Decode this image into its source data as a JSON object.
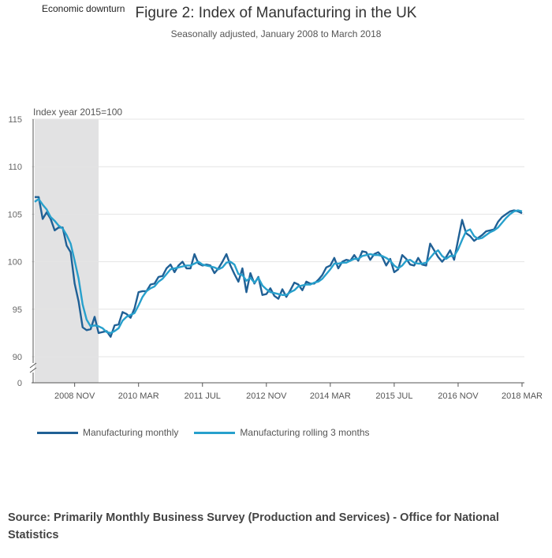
{
  "chart_data": {
    "type": "line",
    "title": "Figure 2: Index of Manufacturing in the UK",
    "subtitle": "Seasonally adjusted, January 2008 to March 2018",
    "ylabel": "Index year 2015=100",
    "ylim": [
      90,
      115
    ],
    "yticks": [
      115,
      110,
      105,
      100,
      95,
      90
    ],
    "ybreak_label": "0",
    "x_start": "2008 JAN",
    "x_end": "2018 MAR",
    "xtick_labels": [
      "2008 NOV",
      "2010 MAR",
      "2011 JUL",
      "2012 NOV",
      "2014 MAR",
      "2015 JUL",
      "2016 NOV",
      "2018 MAR"
    ],
    "xtick_index": [
      10,
      26,
      42,
      58,
      74,
      90,
      106,
      122
    ],
    "shaded_region": {
      "label": "Economic downturn",
      "start_index": 0,
      "end_index": 16
    },
    "series": [
      {
        "name": "Manufacturing monthly",
        "color": "#206095",
        "values": [
          106.8,
          106.8,
          104.5,
          105.2,
          104.5,
          103.3,
          103.6,
          103.6,
          101.7,
          101.0,
          97.7,
          95.8,
          93.1,
          92.8,
          92.9,
          94.2,
          92.5,
          92.6,
          92.7,
          92.1,
          93.3,
          93.4,
          94.7,
          94.5,
          94.1,
          95.1,
          96.8,
          96.9,
          96.9,
          97.6,
          97.7,
          98.4,
          98.5,
          99.3,
          99.7,
          98.9,
          99.6,
          100.0,
          99.3,
          99.3,
          100.8,
          99.8,
          99.6,
          99.7,
          99.6,
          98.8,
          99.3,
          100.0,
          100.8,
          99.6,
          98.7,
          97.9,
          99.3,
          96.8,
          98.8,
          97.7,
          98.4,
          96.5,
          96.6,
          97.2,
          96.4,
          96.1,
          97.1,
          96.3,
          97.0,
          97.8,
          97.6,
          97.0,
          97.9,
          97.7,
          97.7,
          98.1,
          98.6,
          99.4,
          99.6,
          100.4,
          99.3,
          100.0,
          100.2,
          100.1,
          100.7,
          100.1,
          101.1,
          101.0,
          100.2,
          100.8,
          101.0,
          100.5,
          99.6,
          100.3,
          98.9,
          99.2,
          100.7,
          100.3,
          99.7,
          99.6,
          100.4,
          99.7,
          99.6,
          101.9,
          101.2,
          100.5,
          100.0,
          100.5,
          101.2,
          100.2,
          102.3,
          104.4,
          103.0,
          102.7,
          102.2,
          102.5,
          102.8,
          103.2,
          103.3,
          103.4,
          104.2,
          104.7,
          105.0,
          105.3,
          105.4,
          105.3,
          105.1
        ]
      },
      {
        "name": "Manufacturing rolling 3 months",
        "color": "#27a0cc",
        "values": [
          106.3,
          106.6,
          106.0,
          105.5,
          104.7,
          104.3,
          103.8,
          103.5,
          102.8,
          101.9,
          100.1,
          98.2,
          95.5,
          93.9,
          93.2,
          93.3,
          93.2,
          93.0,
          92.6,
          92.5,
          92.7,
          93.0,
          93.8,
          94.2,
          94.4,
          94.6,
          95.4,
          96.3,
          96.9,
          97.2,
          97.4,
          97.9,
          98.2,
          98.7,
          99.2,
          99.3,
          99.4,
          99.5,
          99.6,
          99.6,
          99.8,
          100.0,
          99.7,
          99.6,
          99.5,
          99.4,
          99.2,
          99.4,
          99.9,
          100.0,
          99.7,
          98.7,
          98.6,
          98.0,
          98.3,
          97.8,
          98.3,
          97.5,
          97.1,
          96.8,
          96.7,
          96.6,
          96.5,
          96.5,
          96.8,
          97.0,
          97.4,
          97.5,
          97.6,
          97.6,
          97.8,
          97.9,
          98.2,
          98.7,
          99.2,
          99.8,
          99.8,
          99.9,
          99.9,
          100.1,
          100.3,
          100.3,
          100.6,
          100.7,
          100.8,
          100.7,
          100.7,
          100.6,
          100.4,
          100.1,
          99.6,
          99.3,
          99.6,
          100.1,
          100.2,
          99.9,
          99.8,
          99.8,
          99.9,
          100.4,
          100.9,
          101.2,
          100.6,
          100.3,
          100.6,
          100.6,
          101.3,
          102.3,
          103.2,
          103.4,
          102.7,
          102.4,
          102.5,
          102.8,
          103.1,
          103.3,
          103.6,
          104.1,
          104.6,
          105.0,
          105.3,
          105.4,
          105.3
        ]
      }
    ]
  },
  "source": "Source: Primarily Monthly Business Survey (Production and Services) - Office for National Statistics"
}
